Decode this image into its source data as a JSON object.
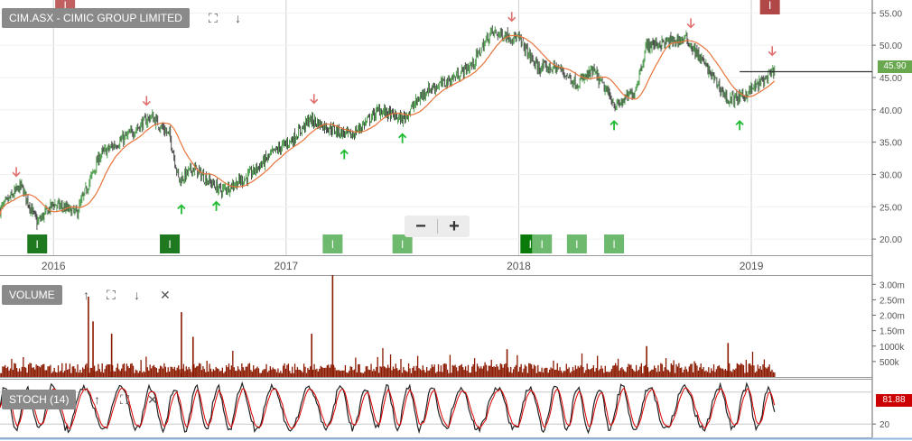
{
  "header": {
    "title": "CIM.ASX - CIMIC GROUP LIMITED"
  },
  "zoom_controls": {
    "minus": "−",
    "plus": "+"
  },
  "volume_panel": {
    "label": "VOLUME"
  },
  "stoch_panel": {
    "label": "STOCH (14)"
  },
  "icons": {
    "header": [
      "fullscreen-icon",
      "arrow-down-icon"
    ],
    "volume": [
      "arrow-up-icon",
      "fullscreen-icon",
      "arrow-down-icon",
      "close-icon"
    ],
    "stoch": [
      "arrow-up-icon",
      "fullscreen-icon",
      "close-icon"
    ]
  },
  "colors": {
    "candle_up": "#2a8a2a",
    "candle_down": "#222222",
    "moving_average": "#e8743b",
    "volume_bar": "#8b1a00",
    "stoch_k": "#222222",
    "stoch_d": "#dd0000",
    "signal_sell": "#e07070",
    "signal_buy": "#22bb33",
    "price_tag": "#6aa84f"
  },
  "chart_data": {
    "type": "candlestick",
    "x_ticks": [
      {
        "label": "2016",
        "t": 2016.0
      },
      {
        "label": "2017",
        "t": 2017.0
      },
      {
        "label": "2018",
        "t": 2018.0
      },
      {
        "label": "2019",
        "t": 2019.0
      }
    ],
    "x_range": [
      2015.77,
      2019.52
    ],
    "price": {
      "ylim": [
        17.5,
        57.0
      ],
      "y_ticks": [
        {
          "label": "20.00",
          "v": 20
        },
        {
          "label": "25.00",
          "v": 25
        },
        {
          "label": "30.00",
          "v": 30
        },
        {
          "label": "35.00",
          "v": 35
        },
        {
          "label": "40.00",
          "v": 40
        },
        {
          "label": "45.00",
          "v": 45
        },
        {
          "label": "50.00",
          "v": 50
        },
        {
          "label": "55.00",
          "v": 55
        }
      ],
      "last_price": 45.9,
      "last_price_label": "45.90",
      "close_path": [
        [
          2015.77,
          24.5
        ],
        [
          2015.86,
          28.3
        ],
        [
          2015.93,
          22.5
        ],
        [
          2016.0,
          25.5
        ],
        [
          2016.1,
          24.0
        ],
        [
          2016.2,
          33.0
        ],
        [
          2016.32,
          36.0
        ],
        [
          2016.42,
          39.0
        ],
        [
          2016.5,
          36.0
        ],
        [
          2016.54,
          29.0
        ],
        [
          2016.6,
          31.0
        ],
        [
          2016.72,
          27.5
        ],
        [
          2016.83,
          29.5
        ],
        [
          2016.95,
          33.5
        ],
        [
          2017.03,
          35.5
        ],
        [
          2017.1,
          38.5
        ],
        [
          2017.2,
          37.0
        ],
        [
          2017.28,
          36.0
        ],
        [
          2017.4,
          40.0
        ],
        [
          2017.5,
          38.5
        ],
        [
          2017.6,
          43.0
        ],
        [
          2017.7,
          44.5
        ],
        [
          2017.8,
          47.0
        ],
        [
          2017.88,
          52.0
        ],
        [
          2017.95,
          51.5
        ],
        [
          2018.0,
          51.0
        ],
        [
          2018.08,
          46.5
        ],
        [
          2018.17,
          46.5
        ],
        [
          2018.25,
          44.0
        ],
        [
          2018.32,
          46.0
        ],
        [
          2018.42,
          40.5
        ],
        [
          2018.5,
          43.0
        ],
        [
          2018.55,
          50.0
        ],
        [
          2018.65,
          50.5
        ],
        [
          2018.72,
          51.0
        ],
        [
          2018.8,
          47.0
        ],
        [
          2018.9,
          41.5
        ],
        [
          2018.96,
          42.0
        ],
        [
          2019.05,
          44.5
        ],
        [
          2019.1,
          45.9
        ]
      ],
      "sell_signals": [
        {
          "t": 2015.84,
          "v": 28.5
        },
        {
          "t": 2016.4,
          "v": 39.5
        },
        {
          "t": 2017.12,
          "v": 39.8
        },
        {
          "t": 2017.97,
          "v": 52.5
        },
        {
          "t": 2018.74,
          "v": 51.5
        },
        {
          "t": 2019.09,
          "v": 47.2
        }
      ],
      "buy_signals": [
        {
          "t": 2016.55,
          "v": 26.5
        },
        {
          "t": 2016.7,
          "v": 27.0
        },
        {
          "t": 2017.25,
          "v": 35.0
        },
        {
          "t": 2017.5,
          "v": 37.5
        },
        {
          "t": 2018.41,
          "v": 39.5
        },
        {
          "t": 2018.95,
          "v": 39.5
        }
      ],
      "markers": [
        {
          "t": 2015.93,
          "label": "I",
          "color": "#1f7a1f"
        },
        {
          "t": 2016.5,
          "label": "I",
          "color": "#1f7a1f"
        },
        {
          "t": 2017.2,
          "label": "I",
          "color": "#6db96d"
        },
        {
          "t": 2017.5,
          "label": "I",
          "color": "#6db96d"
        },
        {
          "t": 2018.05,
          "label": "I",
          "color": "#0a7a0a"
        },
        {
          "t": 2018.1,
          "label": "I",
          "color": "#6db96d"
        },
        {
          "t": 2018.25,
          "label": "I",
          "color": "#6db96d"
        },
        {
          "t": 2018.41,
          "label": "I",
          "color": "#6db96d"
        }
      ],
      "top_markers": [
        {
          "t": 2016.05,
          "label": "I",
          "color": "#c06060"
        },
        {
          "t": 2019.08,
          "label": "I",
          "color": "#b04848"
        }
      ]
    },
    "volume": {
      "ylim": [
        0,
        3300000
      ],
      "y_ticks": [
        {
          "label": "3.00m",
          "v": 3000000
        },
        {
          "label": "2.50m",
          "v": 2500000
        },
        {
          "label": "2.00m",
          "v": 2000000
        },
        {
          "label": "1.50m",
          "v": 1500000
        },
        {
          "label": "1000k",
          "v": 1000000
        },
        {
          "label": "500k",
          "v": 500000
        }
      ],
      "spikes": [
        [
          2016.15,
          2600000
        ],
        [
          2016.17,
          1800000
        ],
        [
          2016.25,
          1400000
        ],
        [
          2016.55,
          2100000
        ],
        [
          2016.6,
          1300000
        ],
        [
          2017.11,
          1400000
        ],
        [
          2017.2,
          3300000
        ],
        [
          2017.95,
          900000
        ],
        [
          2018.55,
          1000000
        ],
        [
          2018.9,
          1100000
        ]
      ]
    },
    "stochastic": {
      "ylim": [
        0,
        100
      ],
      "y_ticks": [
        {
          "label": "20",
          "v": 20
        }
      ],
      "last_k_label": "81.88"
    }
  }
}
